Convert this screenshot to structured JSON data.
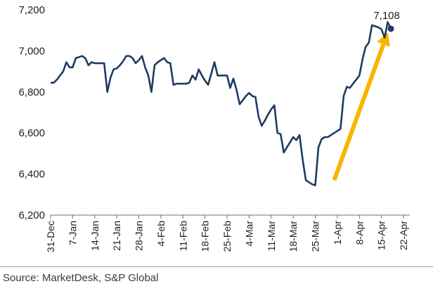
{
  "chart_data": {
    "type": "line",
    "title": "",
    "xlabel": "",
    "ylabel": "",
    "ylim": [
      6200,
      7200
    ],
    "yticks": [
      6200,
      6400,
      6600,
      6800,
      7000,
      7200
    ],
    "ytick_labels": [
      "6,200",
      "6,400",
      "6,600",
      "6,800",
      "7,000",
      "7,200"
    ],
    "xlim": [
      0,
      114
    ],
    "xticks": [
      {
        "label": "31-Dec",
        "day": 0
      },
      {
        "label": "7-Jan",
        "day": 7
      },
      {
        "label": "14-Jan",
        "day": 14
      },
      {
        "label": "21-Jan",
        "day": 21
      },
      {
        "label": "28-Jan",
        "day": 28
      },
      {
        "label": "4-Feb",
        "day": 35
      },
      {
        "label": "11-Feb",
        "day": 42
      },
      {
        "label": "18-Feb",
        "day": 49
      },
      {
        "label": "25-Feb",
        "day": 56
      },
      {
        "label": "4-Mar",
        "day": 63
      },
      {
        "label": "11-Mar",
        "day": 70
      },
      {
        "label": "18-Mar",
        "day": 77
      },
      {
        "label": "25-Mar",
        "day": 84
      },
      {
        "label": "1-Apr",
        "day": 91
      },
      {
        "label": "8-Apr",
        "day": 98
      },
      {
        "label": "15-Apr",
        "day": 105
      },
      {
        "label": "22-Apr",
        "day": 112
      }
    ],
    "line_color": "#1f3b63",
    "arrow_color": "#f7b500",
    "series": [
      {
        "points": [
          [
            0,
            6845
          ],
          [
            1,
            6845
          ],
          [
            2,
            6860
          ],
          [
            3,
            6880
          ],
          [
            4,
            6900
          ],
          [
            5,
            6945
          ],
          [
            6,
            6920
          ],
          [
            7,
            6920
          ],
          [
            8,
            6965
          ],
          [
            9,
            6970
          ],
          [
            10,
            6975
          ],
          [
            11,
            6965
          ],
          [
            12,
            6930
          ],
          [
            13,
            6945
          ],
          [
            14,
            6940
          ],
          [
            15,
            6940
          ],
          [
            16,
            6940
          ],
          [
            17,
            6940
          ],
          [
            18,
            6800
          ],
          [
            19,
            6870
          ],
          [
            20,
            6910
          ],
          [
            21,
            6915
          ],
          [
            22,
            6930
          ],
          [
            23,
            6950
          ],
          [
            24,
            6975
          ],
          [
            25,
            6975
          ],
          [
            26,
            6965
          ],
          [
            27,
            6940
          ],
          [
            28,
            6955
          ],
          [
            29,
            6975
          ],
          [
            30,
            6920
          ],
          [
            31,
            6880
          ],
          [
            32,
            6800
          ],
          [
            33,
            6930
          ],
          [
            34,
            6945
          ],
          [
            35,
            6955
          ],
          [
            36,
            6965
          ],
          [
            37,
            6945
          ],
          [
            38,
            6940
          ],
          [
            39,
            6835
          ],
          [
            40,
            6840
          ],
          [
            41,
            6840
          ],
          [
            42,
            6840
          ],
          [
            43,
            6840
          ],
          [
            44,
            6845
          ],
          [
            45,
            6880
          ],
          [
            46,
            6860
          ],
          [
            47,
            6910
          ],
          [
            48,
            6880
          ],
          [
            49,
            6855
          ],
          [
            50,
            6835
          ],
          [
            51,
            6890
          ],
          [
            52,
            6945
          ],
          [
            53,
            6880
          ],
          [
            54,
            6880
          ],
          [
            55,
            6880
          ],
          [
            56,
            6880
          ],
          [
            57,
            6820
          ],
          [
            58,
            6865
          ],
          [
            59,
            6810
          ],
          [
            60,
            6740
          ],
          [
            61,
            6760
          ],
          [
            62,
            6780
          ],
          [
            63,
            6795
          ],
          [
            64,
            6780
          ],
          [
            65,
            6775
          ],
          [
            66,
            6680
          ],
          [
            67,
            6635
          ],
          [
            68,
            6660
          ],
          [
            69,
            6690
          ],
          [
            70,
            6715
          ],
          [
            71,
            6735
          ],
          [
            72,
            6600
          ],
          [
            73,
            6595
          ],
          [
            74,
            6505
          ],
          [
            75,
            6530
          ],
          [
            76,
            6555
          ],
          [
            77,
            6580
          ],
          [
            78,
            6565
          ],
          [
            79,
            6590
          ],
          [
            80,
            6470
          ],
          [
            81,
            6370
          ],
          [
            82,
            6360
          ],
          [
            83,
            6350
          ],
          [
            84,
            6345
          ],
          [
            85,
            6530
          ],
          [
            86,
            6570
          ],
          [
            87,
            6580
          ],
          [
            88,
            6580
          ],
          [
            89,
            6590
          ],
          [
            90,
            6600
          ],
          [
            91,
            6610
          ],
          [
            92,
            6620
          ],
          [
            93,
            6780
          ],
          [
            94,
            6825
          ],
          [
            95,
            6820
          ],
          [
            96,
            6840
          ],
          [
            97,
            6860
          ],
          [
            98,
            6880
          ],
          [
            99,
            6960
          ],
          [
            100,
            7020
          ],
          [
            101,
            7040
          ],
          [
            102,
            7125
          ],
          [
            103,
            7120
          ],
          [
            104,
            7115
          ],
          [
            105,
            7105
          ],
          [
            106,
            7065
          ],
          [
            107,
            7140
          ],
          [
            108,
            7108
          ]
        ]
      }
    ],
    "last_point": {
      "day": 108,
      "value": 7108,
      "label": "7,108"
    },
    "arrow": {
      "from": {
        "day": 90,
        "value": 6370
      },
      "to": {
        "day": 107,
        "value": 7090
      }
    }
  },
  "source_text": "Source: MarketDesk, S&P Global"
}
